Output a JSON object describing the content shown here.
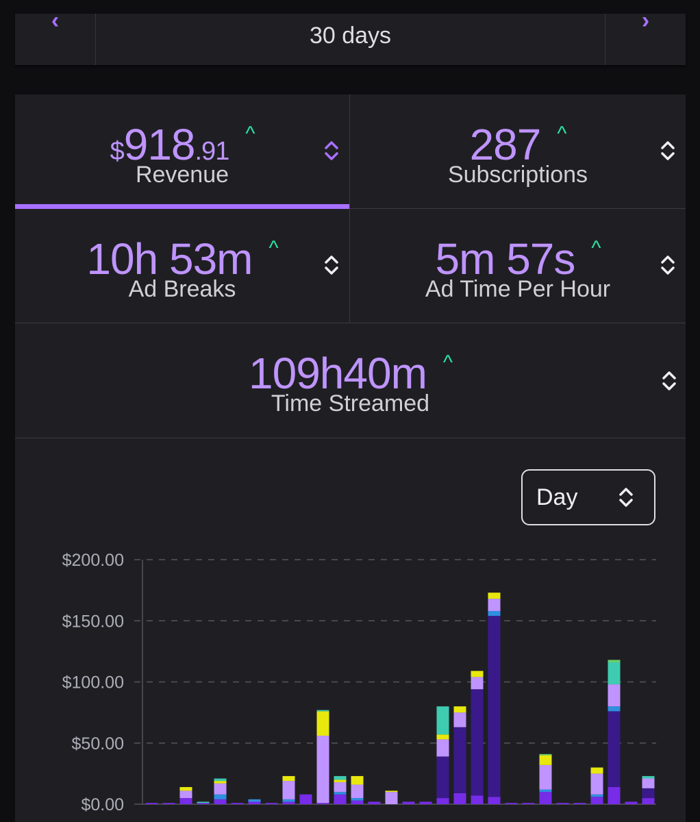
{
  "range": {
    "label": "30 days",
    "prev_icon": "‹",
    "next_icon": "›"
  },
  "stats": [
    {
      "id": "revenue",
      "currency": "$",
      "whole": "918",
      "cents": ".91",
      "caption": "Revenue",
      "trend": "^",
      "active": true
    },
    {
      "id": "subscriptions",
      "value": "287",
      "caption": "Subscriptions",
      "trend": "^"
    },
    {
      "id": "ad-breaks",
      "value": "10h 53m",
      "caption": "Ad Breaks",
      "trend": "^"
    },
    {
      "id": "ad-time-per-hour",
      "value": "5m 57s",
      "caption": "Ad Time Per Hour",
      "trend": "^"
    },
    {
      "id": "time-streamed",
      "value": "109h40m",
      "caption": "Time Streamed",
      "trend": "^"
    }
  ],
  "granularity": {
    "selected": "Day"
  },
  "colors": {
    "accent": "#a970ff",
    "value_text": "#bf94ff",
    "trend_up": "#2be3a1",
    "panel": "#1f1f23"
  },
  "chart_data": {
    "type": "bar",
    "stacked": true,
    "ylim": [
      0,
      200
    ],
    "yticks": [
      "$0.00",
      "$50.00",
      "$100.00",
      "$150.00",
      "$200.00"
    ],
    "ytick_values": [
      0,
      50,
      100,
      150,
      200
    ],
    "grid": true,
    "series": [
      {
        "name": "s1",
        "color": "#772ce8",
        "values": [
          1,
          1,
          5,
          1,
          4,
          1,
          2,
          1,
          2,
          8,
          1,
          8,
          3,
          2,
          0,
          2,
          2,
          5,
          9,
          7,
          6,
          1,
          1,
          10,
          1,
          1,
          6,
          14,
          2,
          5
        ]
      },
      {
        "name": "s2",
        "color": "#3a1a8a",
        "values": [
          0,
          0,
          0,
          0,
          0,
          0,
          0,
          0,
          0,
          0,
          0,
          0,
          0,
          0,
          0,
          0,
          0,
          34,
          54,
          87,
          148,
          0,
          0,
          0,
          0,
          0,
          0,
          62,
          0,
          8
        ]
      },
      {
        "name": "s3",
        "color": "#2f8fe0",
        "values": [
          0,
          0,
          0,
          0,
          4,
          0,
          2,
          0,
          2,
          0,
          0,
          2,
          2,
          0,
          0,
          0,
          0,
          0,
          0,
          0,
          4,
          0,
          0,
          2,
          0,
          0,
          2,
          4,
          0,
          0
        ]
      },
      {
        "name": "s4",
        "color": "#bf94ff",
        "values": [
          0,
          0,
          6,
          0,
          9,
          0,
          0,
          0,
          15,
          0,
          55,
          8,
          11,
          0,
          10,
          0,
          0,
          14,
          12,
          10,
          10,
          0,
          0,
          20,
          0,
          0,
          17,
          18,
          0,
          8
        ]
      },
      {
        "name": "s5",
        "color": "#e8e80e",
        "values": [
          0,
          0,
          3,
          0,
          2,
          0,
          0,
          0,
          4,
          0,
          20,
          2,
          7,
          0,
          1,
          0,
          0,
          4,
          5,
          5,
          5,
          0,
          0,
          8,
          0,
          0,
          5,
          0,
          0,
          0
        ]
      },
      {
        "name": "s6",
        "color": "#3ecbb0",
        "values": [
          0,
          0,
          0,
          1,
          2,
          0,
          0,
          0,
          0,
          0,
          1,
          3,
          0,
          0,
          0,
          0,
          0,
          23,
          0,
          0,
          0,
          0,
          0,
          0,
          0,
          0,
          0,
          18,
          0,
          2
        ]
      },
      {
        "name": "s7",
        "color": "#6ad26e",
        "values": [
          0,
          0,
          0,
          0,
          0,
          0,
          0,
          0,
          0,
          0,
          0,
          0,
          0,
          0,
          0,
          0,
          0,
          0,
          0,
          0,
          0,
          0,
          0,
          1,
          0,
          0,
          0,
          2,
          0,
          0
        ]
      }
    ]
  }
}
